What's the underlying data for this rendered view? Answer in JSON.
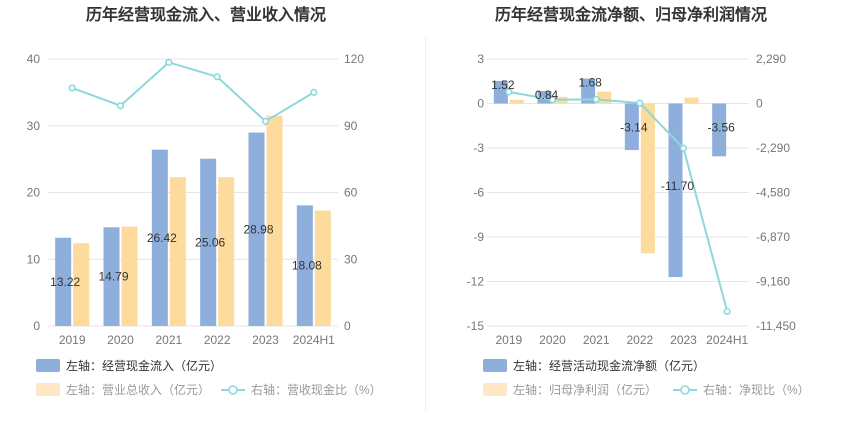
{
  "colors": {
    "bar_blue": "#8eaedb",
    "bar_orange": "#fddb9c",
    "line_cyan": "#8dd8dd",
    "axis_text": "#777777",
    "grid": "#e6e6e6",
    "title": "#333333",
    "divider": "#eeeeee"
  },
  "chart_data": [
    {
      "type": "bar",
      "title": "历年经营现金流入、营业收入情况",
      "categories": [
        "2019",
        "2020",
        "2021",
        "2022",
        "2023",
        "2024H1"
      ],
      "y_left": {
        "ticks": [
          "0",
          "10",
          "20",
          "30",
          "40"
        ],
        "ylim": [
          0,
          40
        ]
      },
      "y_right": {
        "ticks": [
          "0",
          "30",
          "60",
          "90",
          "120"
        ],
        "ylim": [
          0,
          120
        ]
      },
      "series": [
        {
          "name": "左轴：经营现金流入（亿元）",
          "axis": "left",
          "kind": "bar",
          "color": "bar_blue",
          "values": [
            13.22,
            14.79,
            26.42,
            25.06,
            28.98,
            18.08
          ],
          "labels": [
            "13.22",
            "14.79",
            "26.42",
            "25.06",
            "28.98",
            "18.08"
          ]
        },
        {
          "name": "左轴：营业总收入（亿元）",
          "axis": "left",
          "kind": "bar",
          "color": "bar_orange",
          "values": [
            12.4,
            14.9,
            22.3,
            22.3,
            31.5,
            17.3
          ]
        },
        {
          "name": "右轴：营收现金比（%）",
          "axis": "right",
          "kind": "line",
          "color": "line_cyan",
          "values": [
            107,
            99,
            118.5,
            112,
            92,
            105
          ]
        }
      ],
      "legend": [
        {
          "text": "左轴：经营现金流入（亿元）",
          "shape": "rect",
          "color": "bar_blue",
          "muted": false
        },
        {
          "text": "左轴：营业总收入（亿元）",
          "shape": "rect",
          "color": "bar_orange",
          "muted": true
        },
        {
          "text": "右轴：营收现金比（%）",
          "shape": "line",
          "color": "line_cyan",
          "muted": true
        }
      ]
    },
    {
      "type": "bar",
      "title": "历年经营现金流净额、归母净利润情况",
      "categories": [
        "2019",
        "2020",
        "2021",
        "2022",
        "2023",
        "2024H1"
      ],
      "y_left": {
        "ticks": [
          "-15",
          "-12",
          "-9",
          "-6",
          "-3",
          "0",
          "3"
        ],
        "ylim": [
          -15,
          3
        ]
      },
      "y_right": {
        "ticks": [
          "-11,450",
          "-9,160",
          "-6,870",
          "-4,580",
          "-2,290",
          "0",
          "2,290"
        ],
        "ylim": [
          -11450,
          2290
        ]
      },
      "series": [
        {
          "name": "左轴：经营活动现金流净额（亿元）",
          "axis": "left",
          "kind": "bar",
          "color": "bar_blue",
          "values": [
            1.52,
            0.84,
            1.68,
            -3.14,
            -11.7,
            -3.56
          ],
          "labels": [
            "1.52",
            "0.84",
            "1.68",
            "-3.14",
            "-11.70",
            "-3.56"
          ]
        },
        {
          "name": "左轴：归母净利润（亿元）",
          "axis": "left",
          "kind": "bar",
          "color": "bar_orange",
          "values": [
            0.25,
            0.45,
            0.8,
            -10.1,
            0.4,
            0
          ]
        },
        {
          "name": "右轴：净现比（%）",
          "axis": "right",
          "kind": "line",
          "color": "line_cyan",
          "values": [
            600,
            190,
            210,
            20,
            -2300,
            -10700
          ]
        }
      ],
      "legend": [
        {
          "text": "左轴：经营活动现金流净额（亿元）",
          "shape": "rect",
          "color": "bar_blue",
          "muted": false
        },
        {
          "text": "左轴：归母净利润（亿元）",
          "shape": "rect",
          "color": "bar_orange",
          "muted": true
        },
        {
          "text": "右轴：净现比（%）",
          "shape": "line",
          "color": "line_cyan",
          "muted": true
        }
      ]
    }
  ]
}
